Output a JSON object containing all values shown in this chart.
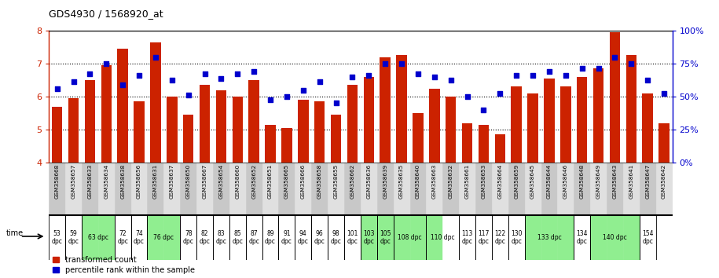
{
  "title": "GDS4930 / 1568920_at",
  "gsm_labels": [
    "GSM358668",
    "GSM358657",
    "GSM358633",
    "GSM358634",
    "GSM358638",
    "GSM358656",
    "GSM358631",
    "GSM358637",
    "GSM358650",
    "GSM358667",
    "GSM358654",
    "GSM358660",
    "GSM358652",
    "GSM358651",
    "GSM358665",
    "GSM358666",
    "GSM358658",
    "GSM358655",
    "GSM358662",
    "GSM358636",
    "GSM358639",
    "GSM358635",
    "GSM358640",
    "GSM358663",
    "GSM358632",
    "GSM358661",
    "GSM358653",
    "GSM358664",
    "GSM358659",
    "GSM358645",
    "GSM358644",
    "GSM358646",
    "GSM358648",
    "GSM358649",
    "GSM358643",
    "GSM358641",
    "GSM358647",
    "GSM358642"
  ],
  "bar_values": [
    5.7,
    5.95,
    6.5,
    6.95,
    7.45,
    5.85,
    7.65,
    6.0,
    5.45,
    6.35,
    6.2,
    6.0,
    6.5,
    5.15,
    5.05,
    5.9,
    5.85,
    5.45,
    6.35,
    6.6,
    7.2,
    7.25,
    5.5,
    6.25,
    6.0,
    5.2,
    5.15,
    4.85,
    6.3,
    6.1,
    6.55,
    6.3,
    6.6,
    6.85,
    7.95,
    7.25,
    6.1,
    5.2
  ],
  "dot_values": [
    6.25,
    6.45,
    6.7,
    7.0,
    6.35,
    6.65,
    7.2,
    6.5,
    6.05,
    6.7,
    6.55,
    6.7,
    6.75,
    5.9,
    6.0,
    6.2,
    6.45,
    5.8,
    6.6,
    6.65,
    7.0,
    7.0,
    6.7,
    6.6,
    6.5,
    6.0,
    5.6,
    6.1,
    6.65,
    6.65,
    6.75,
    6.65,
    6.85,
    6.85,
    7.2,
    7.0,
    6.5,
    6.1
  ],
  "ylim": [
    4,
    8
  ],
  "y_right_labels": [
    "0%",
    "25%",
    "50%",
    "75%",
    "100%"
  ],
  "bar_color": "#cc2200",
  "dot_color": "#0000cc",
  "group_texts": [
    [
      0,
      0,
      "53\ndpc"
    ],
    [
      1,
      1,
      "59\ndpc"
    ],
    [
      2,
      3,
      "63 dpc"
    ],
    [
      4,
      4,
      "72\ndpc"
    ],
    [
      5,
      5,
      "74\ndpc"
    ],
    [
      6,
      7,
      "76 dpc"
    ],
    [
      8,
      8,
      "78\ndpc"
    ],
    [
      9,
      9,
      "82\ndpc"
    ],
    [
      10,
      10,
      "83\ndpc"
    ],
    [
      11,
      11,
      "85\ndpc"
    ],
    [
      12,
      12,
      "87\ndpc"
    ],
    [
      13,
      13,
      "89\ndpc"
    ],
    [
      14,
      14,
      "91\ndpc"
    ],
    [
      15,
      15,
      "94\ndpc"
    ],
    [
      16,
      16,
      "96\ndpc"
    ],
    [
      17,
      17,
      "98\ndpc"
    ],
    [
      18,
      18,
      "101\ndpc"
    ],
    [
      19,
      19,
      "103\ndpc"
    ],
    [
      20,
      20,
      "105\ndpc"
    ],
    [
      21,
      22,
      "108 dpc"
    ],
    [
      23,
      24,
      "110 dpc"
    ],
    [
      25,
      25,
      "113\ndpc"
    ],
    [
      26,
      26,
      "117\ndpc"
    ],
    [
      27,
      27,
      "122\ndpc"
    ],
    [
      28,
      28,
      "130\ndpc"
    ],
    [
      29,
      31,
      "133 dpc"
    ],
    [
      32,
      32,
      "134\ndpc"
    ],
    [
      33,
      35,
      "140 dpc"
    ],
    [
      36,
      36,
      "154\ndpc"
    ]
  ],
  "time_bg_colors": [
    "#ffffff",
    "#ffffff",
    "#90ee90",
    "#90ee90",
    "#ffffff",
    "#ffffff",
    "#90ee90",
    "#90ee90",
    "#ffffff",
    "#ffffff",
    "#ffffff",
    "#ffffff",
    "#ffffff",
    "#ffffff",
    "#ffffff",
    "#ffffff",
    "#ffffff",
    "#ffffff",
    "#ffffff",
    "#90ee90",
    "#90ee90",
    "#90ee90",
    "#90ee90",
    "#90ee90",
    "#ffffff",
    "#ffffff",
    "#ffffff",
    "#ffffff",
    "#ffffff",
    "#90ee90",
    "#90ee90",
    "#90ee90",
    "#ffffff",
    "#90ee90",
    "#90ee90",
    "#90ee90",
    "#ffffff",
    "#ffffff"
  ]
}
